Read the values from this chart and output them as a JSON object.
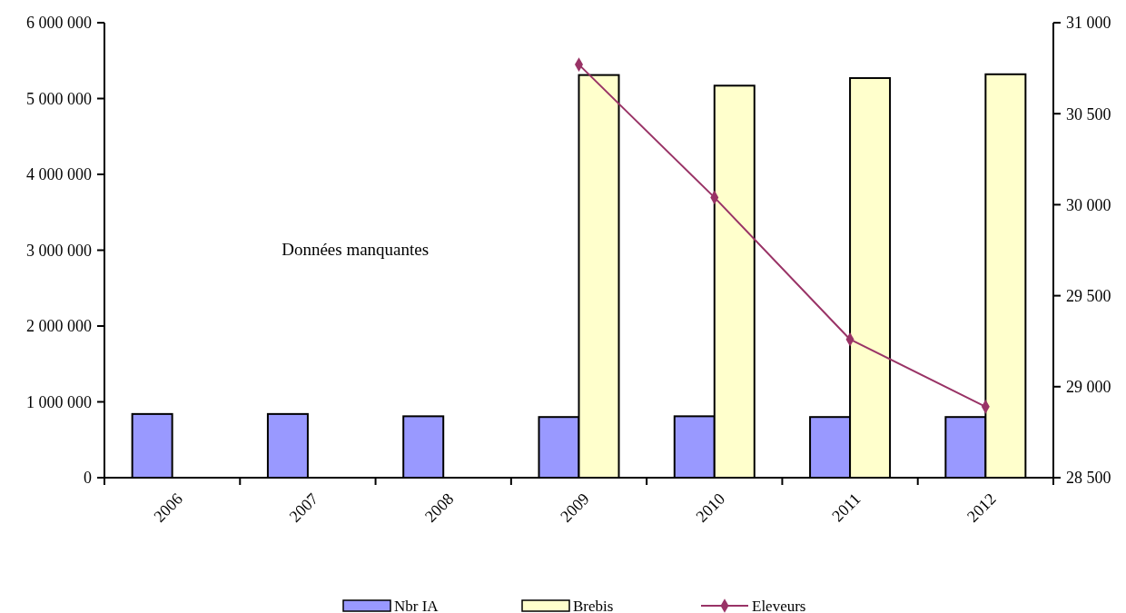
{
  "chart_data": {
    "type": "bar",
    "categories": [
      "2006",
      "2007",
      "2008",
      "2009",
      "2010",
      "2011",
      "2012"
    ],
    "series": [
      {
        "name": "Nbr IA",
        "color": "#9999ff",
        "values": [
          840000,
          840000,
          810000,
          800000,
          810000,
          800000,
          800000
        ]
      },
      {
        "name": "Brebis",
        "color": "#ffffcc",
        "values": [
          null,
          null,
          null,
          5310000,
          5170000,
          5270000,
          5320000
        ]
      },
      {
        "name": "Eleveurs",
        "type": "line",
        "axis": "y2",
        "color": "#993366",
        "marker": "diamond",
        "values": [
          null,
          null,
          null,
          30770,
          30040,
          29260,
          28890
        ]
      }
    ],
    "ylim": [
      0,
      6000000
    ],
    "yticks": [
      0,
      {
        "value": 1000000,
        "label": "1 000 000"
      },
      {
        "value": 2000000,
        "label": "2 000 000"
      },
      {
        "value": 3000000,
        "label": "3 000 000"
      },
      {
        "value": 4000000,
        "label": "4 000 000"
      },
      {
        "value": 5000000,
        "label": "5 000 000"
      },
      {
        "value": 6000000,
        "label": "6 000 000"
      }
    ],
    "y2lim": [
      28500,
      31000
    ],
    "y2ticks": [
      {
        "value": 28500,
        "label": "28 500"
      },
      {
        "value": 29000,
        "label": "29 000"
      },
      {
        "value": 29500,
        "label": "29 500"
      },
      {
        "value": 30000,
        "label": "30 000"
      },
      {
        "value": 30500,
        "label": "30 500"
      },
      {
        "value": 31000,
        "label": "31 000"
      }
    ],
    "annotations": [
      "Données manquantes"
    ],
    "legend": "bottom",
    "grid": false
  }
}
